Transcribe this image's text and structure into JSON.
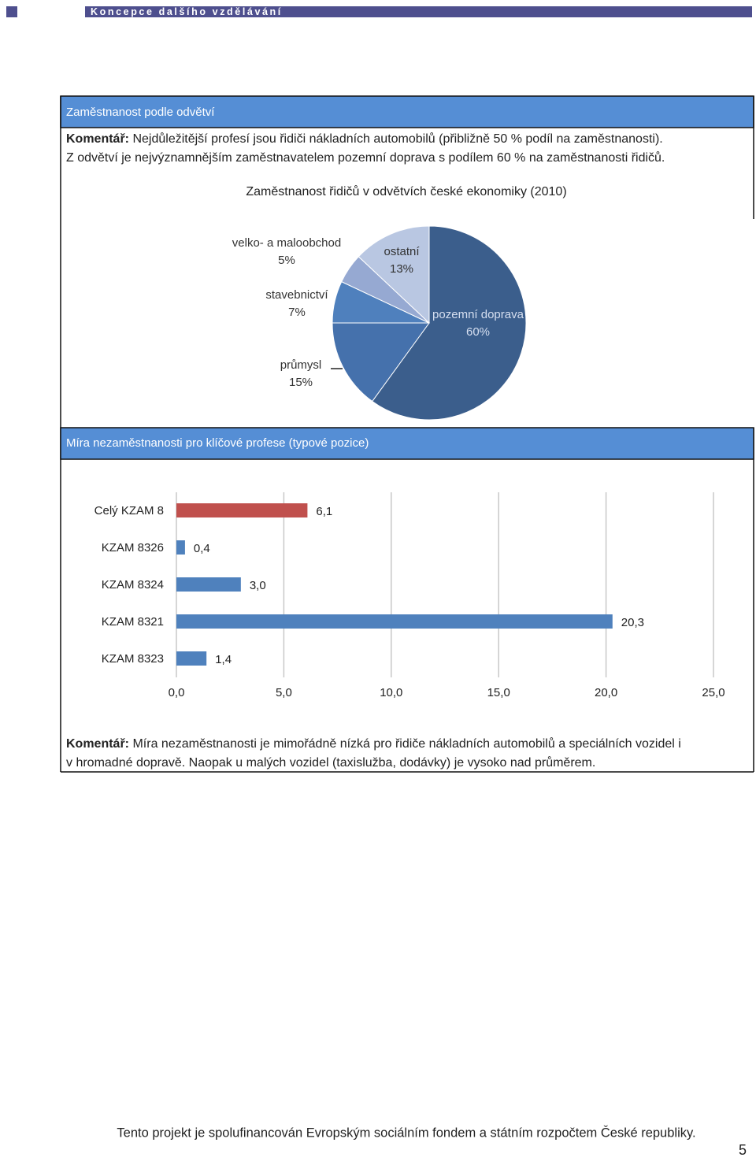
{
  "header": {
    "title": "Koncepce dalšího vzdělávání"
  },
  "section1": {
    "title": "Zaměstnanost podle odvětví",
    "comment_label": "Komentář:",
    "comment_lines": [
      "Nejdůležitější profesí jsou řidiči nákladních automobilů (přibližně 50 % podíl na zaměstnanosti).",
      "Z odvětví je nejvýznamnějším zaměstnavatelem pozemní doprava s podílem 60 % na zaměstnanosti řidičů."
    ]
  },
  "section2": {
    "title": "Míra nezaměstnanosti pro klíčové profese (typové pozice)",
    "comment_label": "Komentář:",
    "comment_lines": [
      "Míra nezaměstnanosti je mimořádně nízká pro řidiče nákladních automobilů a speciálních vozidel i",
      "v hromadné dopravě. Naopak u malých vozidel (taxislužba, dodávky) je vysoko nad průměrem."
    ]
  },
  "chart_data": [
    {
      "type": "pie",
      "title": "Zaměstnanost řidičů v odvětvích české ekonomiky (2010)",
      "categories": [
        "pozemní doprava",
        "průmysl",
        "stavebnictví",
        "velko- a maloobchod",
        "ostatní"
      ],
      "values": [
        60,
        15,
        7,
        5,
        13
      ],
      "value_labels": [
        "60%",
        "15%",
        "7%",
        "5%",
        "13%"
      ],
      "colors": [
        "#3b5e8c",
        "#4571ac",
        "#4f80bd",
        "#96a9d2",
        "#b9c7e2"
      ]
    },
    {
      "type": "bar",
      "orientation": "horizontal",
      "categories": [
        "Celý KZAM 8",
        "KZAM 8326",
        "KZAM 8324",
        "KZAM 8321",
        "KZAM 8323"
      ],
      "values": [
        6.1,
        0.4,
        3.0,
        20.3,
        1.4
      ],
      "value_labels": [
        "6,1",
        "0,4",
        "3,0",
        "20,3",
        "1,4"
      ],
      "colors": [
        "#c0504d",
        "#4f81bd",
        "#4f81bd",
        "#4f81bd",
        "#4f81bd"
      ],
      "xlim": [
        0,
        25
      ],
      "xticks": [
        {
          "value": 0,
          "label": "0,0"
        },
        {
          "value": 5,
          "label": "5,0"
        },
        {
          "value": 10,
          "label": "10,0"
        },
        {
          "value": 15,
          "label": "15,0"
        },
        {
          "value": 20,
          "label": "20,0"
        },
        {
          "value": 25,
          "label": "25,0"
        }
      ],
      "grid": true
    }
  ],
  "footer": {
    "text": "Tento projekt je spolufinancován Evropským sociálním fondem a státním rozpočtem České republiky.",
    "page_number": "5"
  }
}
